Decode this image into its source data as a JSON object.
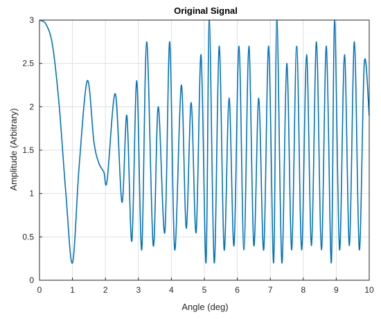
{
  "chart_data": {
    "type": "line",
    "title": "Original Signal",
    "xlabel": "Angle (deg)",
    "ylabel": "Amplitude (Arbitrary)",
    "xlim": [
      0,
      10
    ],
    "ylim": [
      0,
      3
    ],
    "x_ticks": [
      "0",
      "1",
      "2",
      "3",
      "4",
      "5",
      "6",
      "7",
      "8",
      "9",
      "10"
    ],
    "y_ticks": [
      "0",
      "0.5",
      "1",
      "1.5",
      "2",
      "2.5",
      "3"
    ],
    "grid": true,
    "series": [
      {
        "color": "#0072BD",
        "x": [
          0,
          0.2,
          0.4,
          0.6,
          0.8,
          1.0,
          1.2,
          1.45,
          1.65,
          1.8,
          1.95,
          2.05,
          2.3,
          2.5,
          2.65,
          2.8,
          2.95,
          3.1,
          3.25,
          3.45,
          3.6,
          3.8,
          3.95,
          4.1,
          4.3,
          4.45,
          4.6,
          4.75,
          4.9,
          5.05,
          5.15,
          5.3,
          5.45,
          5.6,
          5.75,
          5.9,
          6.05,
          6.2,
          6.35,
          6.5,
          6.65,
          6.8,
          6.95,
          7.1,
          7.2,
          7.35,
          7.5,
          7.65,
          7.8,
          7.95,
          8.1,
          8.25,
          8.4,
          8.55,
          8.7,
          8.85,
          8.95,
          9.1,
          9.25,
          9.4,
          9.55,
          9.7,
          9.85,
          10.0
        ],
        "y": [
          3.0,
          2.95,
          2.7,
          2.0,
          1.0,
          0.2,
          1.3,
          2.3,
          1.6,
          1.35,
          1.25,
          1.15,
          2.15,
          0.9,
          1.9,
          0.45,
          2.3,
          0.35,
          2.75,
          0.4,
          2.0,
          0.55,
          2.75,
          0.35,
          2.25,
          0.6,
          2.05,
          0.55,
          2.6,
          0.2,
          3.0,
          0.2,
          2.7,
          0.35,
          2.1,
          0.4,
          2.7,
          0.35,
          2.7,
          0.4,
          2.1,
          0.35,
          2.7,
          0.2,
          3.0,
          0.2,
          2.5,
          0.35,
          2.7,
          0.35,
          2.6,
          0.4,
          2.75,
          0.35,
          2.7,
          0.2,
          3.0,
          0.35,
          2.6,
          0.4,
          2.75,
          0.35,
          2.5,
          1.9
        ]
      }
    ]
  }
}
